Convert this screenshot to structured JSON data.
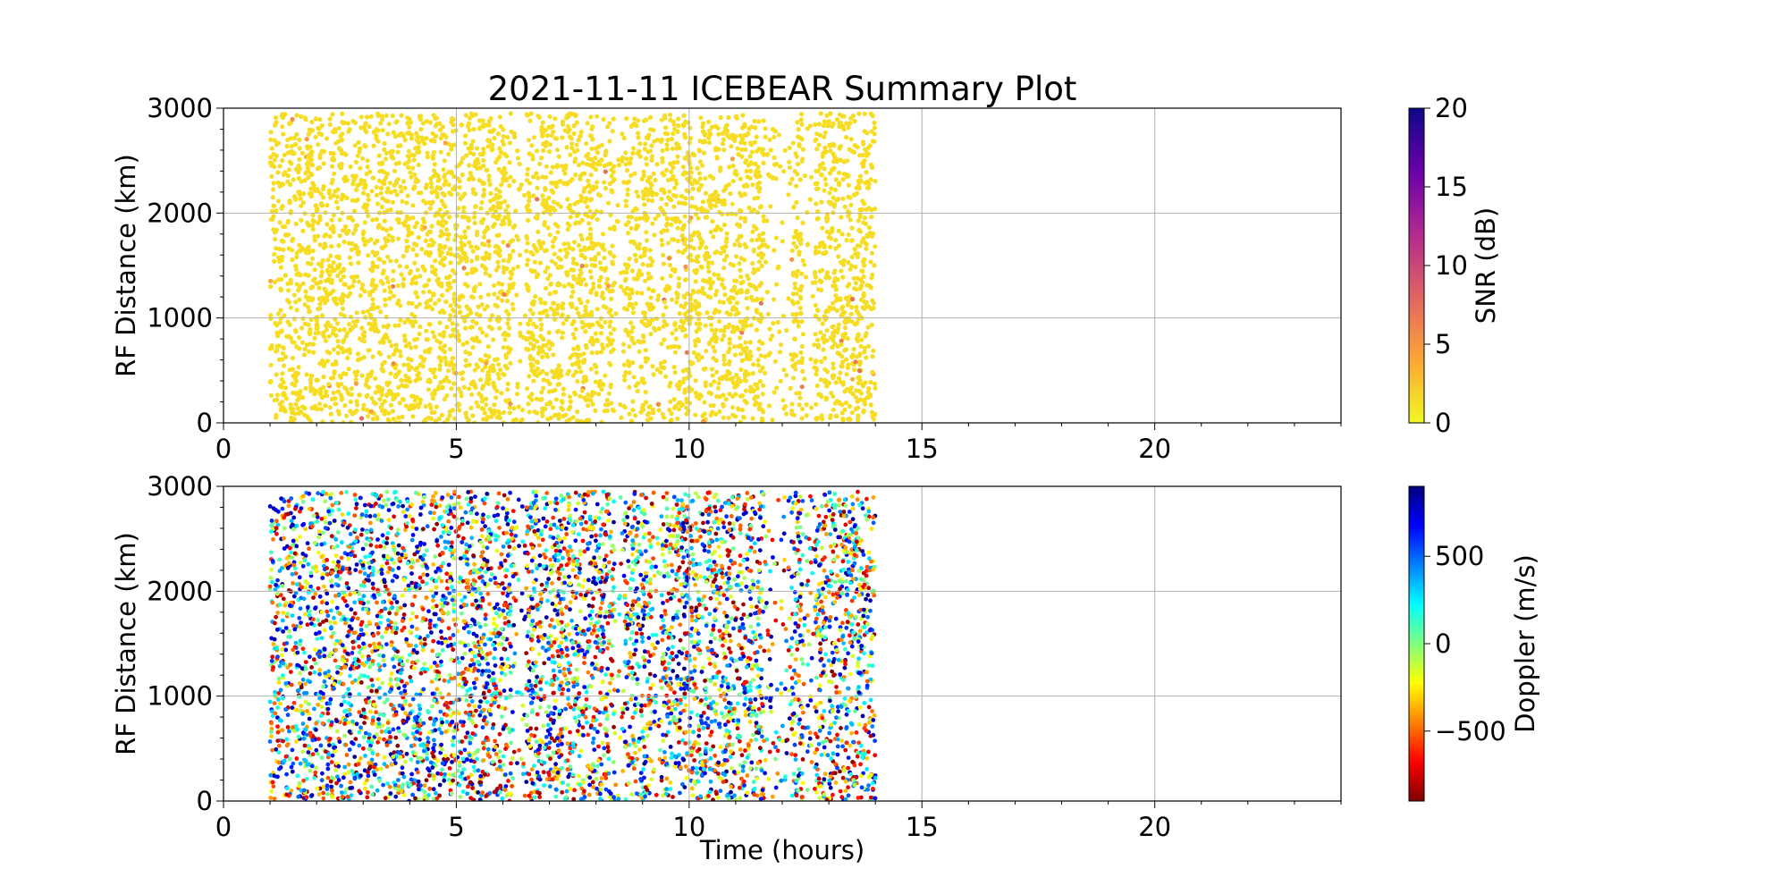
{
  "figure": {
    "title": "2021-11-11 ICEBEAR Summary Plot"
  },
  "chart_data": [
    {
      "type": "scatter",
      "title": "2021-11-11 ICEBEAR Summary Plot",
      "xlabel": "",
      "ylabel": "RF Distance (km)",
      "xlim": [
        0,
        24
      ],
      "ylim": [
        0,
        3000
      ],
      "x_ticks": [
        "0",
        "5",
        "10",
        "15",
        "20"
      ],
      "y_ticks": [
        "0",
        "1000",
        "2000",
        "3000"
      ],
      "grid": true,
      "data_extent": {
        "x_range": [
          1.0,
          14.0
        ],
        "y_range": [
          0,
          2950
        ]
      },
      "color_variable": "SNR (dB)",
      "colorbar": {
        "label": "SNR (dB)",
        "range": [
          0,
          20
        ],
        "ticks": [
          "0",
          "5",
          "10",
          "15",
          "20"
        ],
        "colormap": "plasma_r",
        "stops": [
          "#f0f921",
          "#fca636",
          "#e16462",
          "#b12a90",
          "#6a00a8",
          "#0d0887"
        ]
      },
      "dominant_color": "#f6dd23"
    },
    {
      "type": "scatter",
      "title": "",
      "xlabel": "Time (hours)",
      "ylabel": "RF Distance (km)",
      "xlim": [
        0,
        24
      ],
      "ylim": [
        0,
        3000
      ],
      "x_ticks": [
        "0",
        "5",
        "10",
        "15",
        "20"
      ],
      "y_ticks": [
        "0",
        "1000",
        "2000",
        "3000"
      ],
      "grid": true,
      "data_extent": {
        "x_range": [
          1.0,
          14.0
        ],
        "y_range": [
          0,
          2950
        ]
      },
      "color_variable": "Doppler (m/s)",
      "colorbar": {
        "label": "Doppler (m/s)",
        "range": [
          -900,
          900
        ],
        "ticks": [
          "−500",
          "0",
          "500"
        ],
        "tick_values": [
          -500,
          0,
          500
        ],
        "colormap": "jet_r",
        "stops": [
          "#7f0000",
          "#ff0000",
          "#ff8000",
          "#ffff00",
          "#80ff80",
          "#00ffff",
          "#0080ff",
          "#0000ff",
          "#00007f"
        ]
      }
    }
  ]
}
